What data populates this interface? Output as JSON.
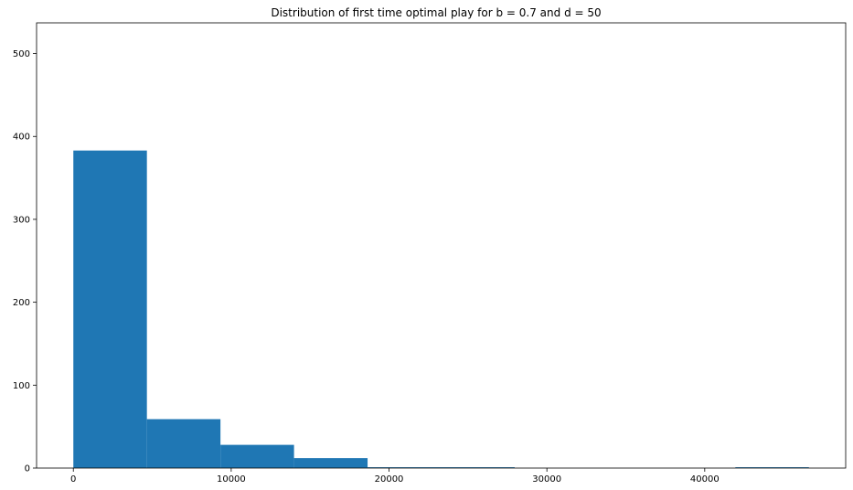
{
  "chart_data": {
    "type": "bar",
    "title": "Distribution of first time optimal play for b = 0.7 and d = 50",
    "xlabel": "",
    "ylabel": "",
    "bins": [
      {
        "start": 0,
        "end": 4660,
        "count": 383
      },
      {
        "start": 4660,
        "end": 9320,
        "count": 59
      },
      {
        "start": 9320,
        "end": 13980,
        "count": 28
      },
      {
        "start": 13980,
        "end": 18640,
        "count": 12
      },
      {
        "start": 18640,
        "end": 23300,
        "count": 1
      },
      {
        "start": 23300,
        "end": 27960,
        "count": 1
      },
      {
        "start": 27960,
        "end": 32620,
        "count": 0
      },
      {
        "start": 32620,
        "end": 37280,
        "count": 0
      },
      {
        "start": 37280,
        "end": 41940,
        "count": 0
      },
      {
        "start": 41940,
        "end": 46600,
        "count": 1
      }
    ],
    "xlim": [
      -2330,
      48930
    ],
    "ylim": [
      0,
      537
    ],
    "xticks": [
      0,
      10000,
      20000,
      30000,
      40000
    ],
    "xtick_labels": [
      "0",
      "10000",
      "20000",
      "30000",
      "40000"
    ],
    "yticks": [
      0,
      100,
      200,
      300,
      400,
      500
    ],
    "ytick_labels": [
      "0",
      "100",
      "200",
      "300",
      "400",
      "500"
    ],
    "bar_color": "#1f77b4",
    "grid": false,
    "legend": false
  }
}
